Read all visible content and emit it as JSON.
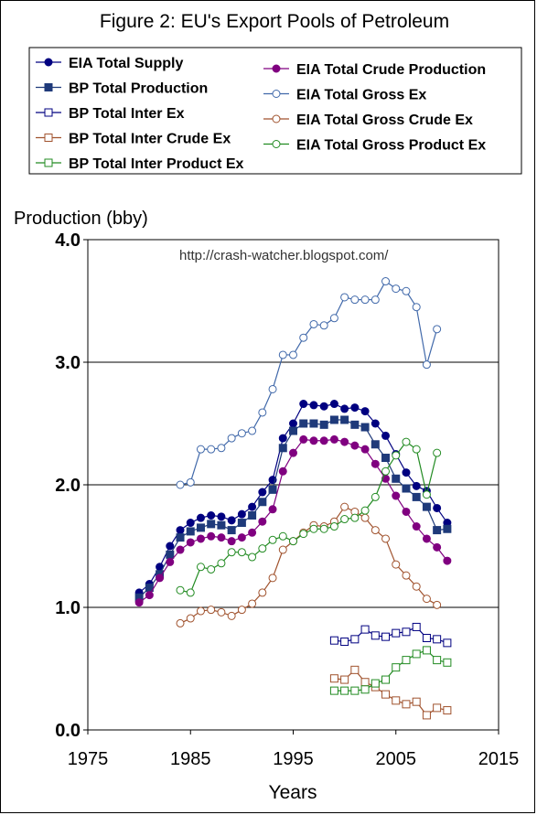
{
  "chart_data": {
    "type": "line",
    "title": "Figure 2: EU's Export Pools of Petroleum",
    "ylabel": "Production (bby)",
    "xlabel": "Years",
    "annotation": "http://crash-watcher.blogspot.com/",
    "xlim": [
      1975,
      2015
    ],
    "ylim": [
      0,
      4
    ],
    "xticks": [
      "1975",
      "1985",
      "1995",
      "2005",
      "2015"
    ],
    "yticks": [
      "0.0",
      "1.0",
      "2.0",
      "3.0",
      "4.0"
    ],
    "grid": "horizontal",
    "legend_position": "top",
    "series": [
      {
        "name": "EIA Total Supply",
        "color": "#000080",
        "marker": "filled-circle",
        "x": [
          1980,
          1981,
          1982,
          1983,
          1984,
          1985,
          1986,
          1987,
          1988,
          1989,
          1990,
          1991,
          1992,
          1993,
          1994,
          1995,
          1996,
          1997,
          1998,
          1999,
          2000,
          2001,
          2002,
          2003,
          2004,
          2005,
          2006,
          2007,
          2008,
          2009,
          2010
        ],
        "y": [
          1.12,
          1.19,
          1.33,
          1.5,
          1.63,
          1.69,
          1.73,
          1.75,
          1.74,
          1.71,
          1.76,
          1.82,
          1.94,
          2.04,
          2.38,
          2.5,
          2.66,
          2.65,
          2.64,
          2.66,
          2.62,
          2.63,
          2.6,
          2.5,
          2.4,
          2.25,
          2.1,
          1.99,
          1.95,
          1.81,
          1.69
        ]
      },
      {
        "name": "BP Total Production",
        "color": "#1F3A7A",
        "marker": "filled-square",
        "x": [
          1980,
          1981,
          1982,
          1983,
          1984,
          1985,
          1986,
          1987,
          1988,
          1989,
          1990,
          1991,
          1992,
          1993,
          1994,
          1995,
          1996,
          1997,
          1998,
          1999,
          2000,
          2001,
          2002,
          2003,
          2004,
          2005,
          2006,
          2007,
          2008,
          2009,
          2010
        ],
        "y": [
          1.08,
          1.16,
          1.27,
          1.43,
          1.57,
          1.62,
          1.65,
          1.68,
          1.67,
          1.63,
          1.69,
          1.75,
          1.86,
          1.96,
          2.3,
          2.44,
          2.5,
          2.5,
          2.49,
          2.53,
          2.53,
          2.49,
          2.47,
          2.33,
          2.22,
          2.05,
          1.97,
          1.9,
          1.82,
          1.63,
          1.64
        ]
      },
      {
        "name": "BP Total Inter Ex",
        "color": "#000080",
        "marker": "open-square",
        "x": [
          1999,
          2000,
          2001,
          2002,
          2003,
          2004,
          2005,
          2006,
          2007,
          2008,
          2009,
          2010
        ],
        "y": [
          0.73,
          0.72,
          0.74,
          0.82,
          0.77,
          0.76,
          0.79,
          0.8,
          0.84,
          0.75,
          0.74,
          0.71
        ]
      },
      {
        "name": "BP Total Inter Crude Ex",
        "color": "#A0522D",
        "marker": "open-square",
        "x": [
          1999,
          2000,
          2001,
          2002,
          2003,
          2004,
          2005,
          2006,
          2007,
          2008,
          2009,
          2010
        ],
        "y": [
          0.42,
          0.41,
          0.49,
          0.39,
          0.35,
          0.29,
          0.24,
          0.21,
          0.23,
          0.12,
          0.18,
          0.16
        ]
      },
      {
        "name": "BP Total Inter Product Ex",
        "color": "#228B22",
        "marker": "open-square",
        "x": [
          1999,
          2000,
          2001,
          2002,
          2003,
          2004,
          2005,
          2006,
          2007,
          2008,
          2009,
          2010
        ],
        "y": [
          0.32,
          0.32,
          0.32,
          0.33,
          0.38,
          0.41,
          0.51,
          0.57,
          0.62,
          0.65,
          0.57,
          0.55
        ]
      },
      {
        "name": "EIA Total Crude Production",
        "color": "#800080",
        "marker": "filled-circle",
        "x": [
          1980,
          1981,
          1982,
          1983,
          1984,
          1985,
          1986,
          1987,
          1988,
          1989,
          1990,
          1991,
          1992,
          1993,
          1994,
          1995,
          1996,
          1997,
          1998,
          1999,
          2000,
          2001,
          2002,
          2003,
          2004,
          2005,
          2006,
          2007,
          2008,
          2009,
          2010
        ],
        "y": [
          1.04,
          1.1,
          1.24,
          1.37,
          1.47,
          1.53,
          1.56,
          1.58,
          1.57,
          1.54,
          1.57,
          1.61,
          1.7,
          1.8,
          2.11,
          2.26,
          2.37,
          2.36,
          2.36,
          2.37,
          2.35,
          2.32,
          2.29,
          2.17,
          2.05,
          1.91,
          1.78,
          1.66,
          1.56,
          1.49,
          1.38
        ]
      },
      {
        "name": "EIA Total Gross Ex",
        "color": "#4169AA",
        "marker": "open-circle",
        "x": [
          1984,
          1985,
          1986,
          1987,
          1988,
          1989,
          1990,
          1991,
          1992,
          1993,
          1994,
          1995,
          1996,
          1997,
          1998,
          1999,
          2000,
          2001,
          2002,
          2003,
          2004,
          2005,
          2006,
          2007,
          2008,
          2009
        ],
        "y": [
          2.0,
          2.02,
          2.29,
          2.29,
          2.3,
          2.38,
          2.42,
          2.44,
          2.59,
          2.78,
          3.06,
          3.06,
          3.2,
          3.31,
          3.3,
          3.36,
          3.53,
          3.51,
          3.51,
          3.51,
          3.66,
          3.6,
          3.58,
          3.45,
          2.98,
          3.27
        ]
      },
      {
        "name": "EIA Total Gross Crude Ex",
        "color": "#A0522D",
        "marker": "open-circle",
        "x": [
          1984,
          1985,
          1986,
          1987,
          1988,
          1989,
          1990,
          1991,
          1992,
          1993,
          1994,
          1995,
          1996,
          1997,
          1998,
          1999,
          2000,
          2001,
          2002,
          2003,
          2004,
          2005,
          2006,
          2007,
          2008,
          2009
        ],
        "y": [
          0.87,
          0.91,
          0.97,
          0.98,
          0.96,
          0.93,
          0.98,
          1.03,
          1.12,
          1.24,
          1.47,
          1.54,
          1.61,
          1.67,
          1.66,
          1.7,
          1.82,
          1.78,
          1.73,
          1.63,
          1.56,
          1.35,
          1.26,
          1.17,
          1.07,
          1.02
        ]
      },
      {
        "name": "EIA Total Gross Product Ex",
        "color": "#228B22",
        "marker": "open-circle",
        "x": [
          1984,
          1985,
          1986,
          1987,
          1988,
          1989,
          1990,
          1991,
          1992,
          1993,
          1994,
          1995,
          1996,
          1997,
          1998,
          1999,
          2000,
          2001,
          2002,
          2003,
          2004,
          2005,
          2006,
          2007,
          2008,
          2009
        ],
        "y": [
          1.14,
          1.12,
          1.33,
          1.31,
          1.36,
          1.45,
          1.45,
          1.41,
          1.48,
          1.55,
          1.58,
          1.54,
          1.6,
          1.64,
          1.64,
          1.66,
          1.72,
          1.73,
          1.79,
          1.9,
          2.11,
          2.24,
          2.35,
          2.29,
          1.92,
          2.26
        ]
      }
    ]
  }
}
